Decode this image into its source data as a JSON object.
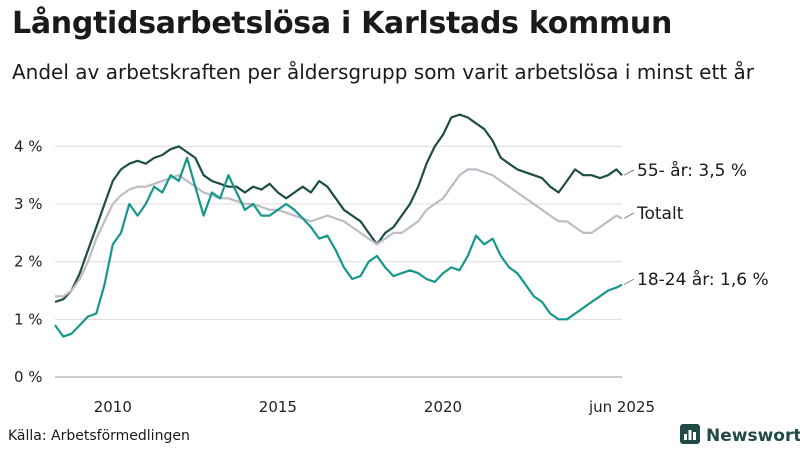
{
  "title": "Långtidsarbetslösa i Karlstads kommun",
  "subtitle": "Andel av arbetskraften per åldersgrupp som varit arbetslösa i minst ett år",
  "source": "Källa: Arbetsförmedlingen",
  "brand": {
    "name": "Newsworthy",
    "icon": "bar-chart-icon",
    "color": "#1f4a45"
  },
  "chart_data": {
    "type": "line",
    "xlabel": "",
    "ylabel": "",
    "ylim": [
      0,
      4.7
    ],
    "xlim": [
      2008.25,
      2025.42
    ],
    "grid": true,
    "y_ticks": [
      {
        "value": 0,
        "label": "0 %"
      },
      {
        "value": 1,
        "label": "1 %"
      },
      {
        "value": 2,
        "label": "2 %"
      },
      {
        "value": 3,
        "label": "3 %"
      },
      {
        "value": 4,
        "label": "4 %"
      }
    ],
    "x_ticks": [
      {
        "value": 2010,
        "label": "2010"
      },
      {
        "value": 2015,
        "label": "2015"
      },
      {
        "value": 2020,
        "label": "2020"
      },
      {
        "value": 2025.42,
        "label": "jun 2025"
      }
    ],
    "series": [
      {
        "name": "55- år",
        "label": "55- år: 3,5 %",
        "color": "#1e4d45",
        "x": [
          2008.25,
          2008.5,
          2008.75,
          2009.0,
          2009.25,
          2009.5,
          2009.75,
          2010.0,
          2010.25,
          2010.5,
          2010.75,
          2011.0,
          2011.25,
          2011.5,
          2011.75,
          2012.0,
          2012.25,
          2012.5,
          2012.75,
          2013.0,
          2013.25,
          2013.5,
          2013.75,
          2014.0,
          2014.25,
          2014.5,
          2014.75,
          2015.0,
          2015.25,
          2015.5,
          2015.75,
          2016.0,
          2016.25,
          2016.5,
          2016.75,
          2017.0,
          2017.25,
          2017.5,
          2017.75,
          2018.0,
          2018.25,
          2018.5,
          2018.75,
          2019.0,
          2019.25,
          2019.5,
          2019.75,
          2020.0,
          2020.25,
          2020.5,
          2020.75,
          2021.0,
          2021.25,
          2021.5,
          2021.75,
          2022.0,
          2022.25,
          2022.5,
          2022.75,
          2023.0,
          2023.25,
          2023.5,
          2023.75,
          2024.0,
          2024.25,
          2024.5,
          2024.75,
          2025.0,
          2025.25,
          2025.42
        ],
        "values": [
          1.3,
          1.35,
          1.5,
          1.8,
          2.2,
          2.6,
          3.0,
          3.4,
          3.6,
          3.7,
          3.75,
          3.7,
          3.8,
          3.85,
          3.95,
          4.0,
          3.9,
          3.8,
          3.5,
          3.4,
          3.35,
          3.3,
          3.3,
          3.2,
          3.3,
          3.25,
          3.35,
          3.2,
          3.1,
          3.2,
          3.3,
          3.2,
          3.4,
          3.3,
          3.1,
          2.9,
          2.8,
          2.7,
          2.5,
          2.3,
          2.5,
          2.6,
          2.8,
          3.0,
          3.3,
          3.7,
          4.0,
          4.2,
          4.5,
          4.55,
          4.5,
          4.4,
          4.3,
          4.1,
          3.8,
          3.7,
          3.6,
          3.55,
          3.5,
          3.45,
          3.3,
          3.2,
          3.4,
          3.6,
          3.5,
          3.5,
          3.45,
          3.5,
          3.6,
          3.5
        ]
      },
      {
        "name": "Totalt",
        "label": "Totalt",
        "color": "#bfbcc8",
        "x": [
          2008.25,
          2008.5,
          2008.75,
          2009.0,
          2009.25,
          2009.5,
          2009.75,
          2010.0,
          2010.25,
          2010.5,
          2010.75,
          2011.0,
          2011.25,
          2011.5,
          2011.75,
          2012.0,
          2012.25,
          2012.5,
          2012.75,
          2013.0,
          2013.25,
          2013.5,
          2013.75,
          2014.0,
          2014.25,
          2014.5,
          2014.75,
          2015.0,
          2015.25,
          2015.5,
          2015.75,
          2016.0,
          2016.25,
          2016.5,
          2016.75,
          2017.0,
          2017.25,
          2017.5,
          2017.75,
          2018.0,
          2018.25,
          2018.5,
          2018.75,
          2019.0,
          2019.25,
          2019.5,
          2019.75,
          2020.0,
          2020.25,
          2020.5,
          2020.75,
          2021.0,
          2021.25,
          2021.5,
          2021.75,
          2022.0,
          2022.25,
          2022.5,
          2022.75,
          2023.0,
          2023.25,
          2023.5,
          2023.75,
          2024.0,
          2024.25,
          2024.5,
          2024.75,
          2025.0,
          2025.25,
          2025.42
        ],
        "values": [
          1.4,
          1.4,
          1.5,
          1.7,
          2.0,
          2.4,
          2.7,
          3.0,
          3.15,
          3.25,
          3.3,
          3.3,
          3.35,
          3.4,
          3.45,
          3.5,
          3.4,
          3.3,
          3.2,
          3.15,
          3.1,
          3.1,
          3.05,
          3.0,
          3.0,
          2.95,
          2.9,
          2.9,
          2.85,
          2.8,
          2.75,
          2.7,
          2.75,
          2.8,
          2.75,
          2.7,
          2.6,
          2.5,
          2.4,
          2.3,
          2.4,
          2.5,
          2.5,
          2.6,
          2.7,
          2.9,
          3.0,
          3.1,
          3.3,
          3.5,
          3.6,
          3.6,
          3.55,
          3.5,
          3.4,
          3.3,
          3.2,
          3.1,
          3.0,
          2.9,
          2.8,
          2.7,
          2.7,
          2.6,
          2.5,
          2.5,
          2.6,
          2.7,
          2.8,
          2.75
        ]
      },
      {
        "name": "18-24 år",
        "label": "18-24 år: 1,6 %",
        "color": "#17978a",
        "x": [
          2008.25,
          2008.5,
          2008.75,
          2009.0,
          2009.25,
          2009.5,
          2009.75,
          2010.0,
          2010.25,
          2010.5,
          2010.75,
          2011.0,
          2011.25,
          2011.5,
          2011.75,
          2012.0,
          2012.25,
          2012.5,
          2012.75,
          2013.0,
          2013.25,
          2013.5,
          2013.75,
          2014.0,
          2014.25,
          2014.5,
          2014.75,
          2015.0,
          2015.25,
          2015.5,
          2015.75,
          2016.0,
          2016.25,
          2016.5,
          2016.75,
          2017.0,
          2017.25,
          2017.5,
          2017.75,
          2018.0,
          2018.25,
          2018.5,
          2018.75,
          2019.0,
          2019.25,
          2019.5,
          2019.75,
          2020.0,
          2020.25,
          2020.5,
          2020.75,
          2021.0,
          2021.25,
          2021.5,
          2021.75,
          2022.0,
          2022.25,
          2022.5,
          2022.75,
          2023.0,
          2023.25,
          2023.5,
          2023.75,
          2024.0,
          2024.25,
          2024.5,
          2024.75,
          2025.0,
          2025.25,
          2025.42
        ],
        "values": [
          0.9,
          0.7,
          0.75,
          0.9,
          1.05,
          1.1,
          1.6,
          2.3,
          2.5,
          3.0,
          2.8,
          3.0,
          3.3,
          3.2,
          3.5,
          3.4,
          3.8,
          3.3,
          2.8,
          3.2,
          3.1,
          3.5,
          3.2,
          2.9,
          3.0,
          2.8,
          2.8,
          2.9,
          3.0,
          2.9,
          2.75,
          2.6,
          2.4,
          2.45,
          2.2,
          1.9,
          1.7,
          1.75,
          2.0,
          2.1,
          1.9,
          1.75,
          1.8,
          1.85,
          1.8,
          1.7,
          1.65,
          1.8,
          1.9,
          1.85,
          2.1,
          2.45,
          2.3,
          2.4,
          2.1,
          1.9,
          1.8,
          1.6,
          1.4,
          1.3,
          1.1,
          1.0,
          1.0,
          1.1,
          1.2,
          1.3,
          1.4,
          1.5,
          1.55,
          1.6
        ]
      }
    ]
  }
}
